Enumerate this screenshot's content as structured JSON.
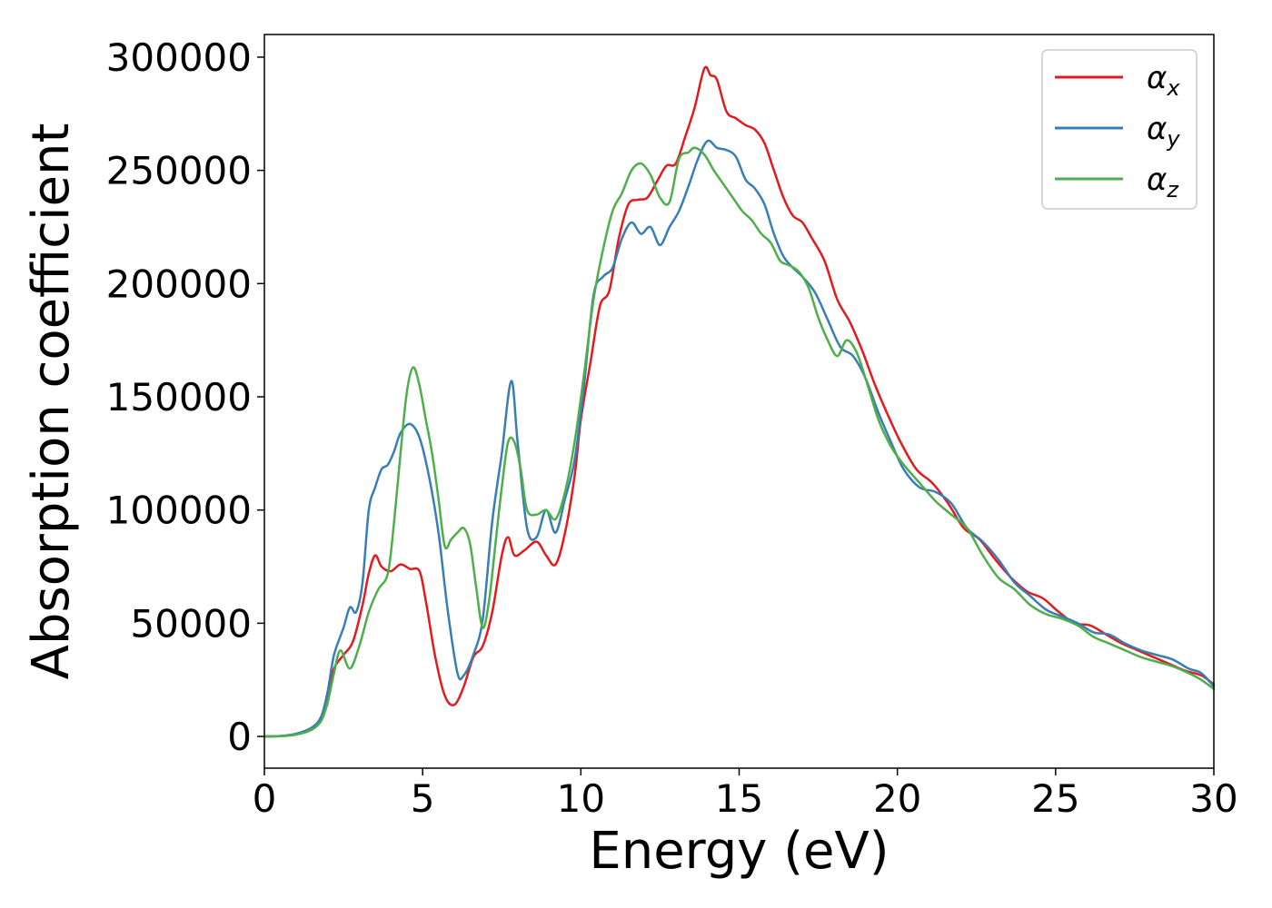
{
  "chart_data": {
    "type": "line",
    "title": "",
    "xlabel": "Energy (eV)",
    "ylabel": "Absorption coefficient",
    "xlim": [
      0,
      30
    ],
    "ylim": [
      -14000,
      310000
    ],
    "x_ticks": [
      "0",
      "5",
      "10",
      "15",
      "20",
      "25",
      "30"
    ],
    "y_ticks": [
      "0",
      "50000",
      "100000",
      "150000",
      "200000",
      "250000",
      "300000"
    ],
    "grid": false,
    "legend_position": "top-right",
    "series": [
      {
        "name": "α",
        "subscript": "x",
        "color": "#e41a1c",
        "x": [
          0,
          0.5,
          1,
          1.5,
          1.8,
          2,
          2.2,
          2.5,
          2.8,
          3.1,
          3.3,
          3.5,
          3.7,
          4,
          4.3,
          4.6,
          4.9,
          5.1,
          5.4,
          5.7,
          6,
          6.3,
          6.6,
          6.9,
          7.2,
          7.5,
          7.7,
          7.9,
          8.2,
          8.6,
          8.9,
          9.2,
          9.5,
          9.8,
          10,
          10.3,
          10.6,
          10.9,
          11.2,
          11.5,
          11.8,
          12.1,
          12.4,
          12.7,
          13,
          13.3,
          13.6,
          13.9,
          14.1,
          14.3,
          14.6,
          14.9,
          15.2,
          15.5,
          15.8,
          16.1,
          16.4,
          16.7,
          17,
          17.3,
          17.7,
          18.1,
          18.5,
          18.9,
          19.3,
          19.7,
          20.1,
          20.6,
          21.1,
          21.6,
          22.1,
          22.6,
          23.1,
          23.6,
          24.1,
          24.6,
          25.1,
          25.6,
          26.1,
          26.6,
          27.1,
          27.6,
          28.1,
          28.6,
          29.1,
          29.6,
          30
        ],
        "y": [
          0,
          200,
          1000,
          3500,
          8000,
          18000,
          30000,
          36000,
          42000,
          58000,
          72000,
          80000,
          75000,
          73000,
          76000,
          74000,
          73000,
          60000,
          35000,
          18000,
          14000,
          22000,
          35000,
          40000,
          55000,
          80000,
          88000,
          80000,
          82000,
          86000,
          80000,
          76000,
          90000,
          115000,
          140000,
          165000,
          190000,
          197000,
          220000,
          235000,
          237000,
          238000,
          245000,
          252000,
          253000,
          265000,
          278000,
          295000,
          292000,
          290000,
          276000,
          273000,
          270000,
          268000,
          262000,
          250000,
          238000,
          230000,
          227000,
          220000,
          210000,
          193000,
          183000,
          170000,
          155000,
          142000,
          130000,
          118000,
          112000,
          103000,
          92000,
          87000,
          78000,
          70000,
          64000,
          61000,
          55000,
          50000,
          49000,
          45000,
          41000,
          38000,
          35000,
          32000,
          29000,
          27000,
          23000
        ]
      },
      {
        "name": "α",
        "subscript": "y",
        "color": "#377eb8",
        "x": [
          0,
          0.5,
          1,
          1.5,
          1.8,
          2,
          2.2,
          2.5,
          2.7,
          2.9,
          3.1,
          3.3,
          3.5,
          3.7,
          3.9,
          4.1,
          4.3,
          4.6,
          4.9,
          5.2,
          5.5,
          5.8,
          6.1,
          6.3,
          6.6,
          6.9,
          7.2,
          7.5,
          7.8,
          8,
          8.3,
          8.6,
          8.9,
          9.2,
          9.5,
          9.8,
          10.1,
          10.4,
          10.7,
          11,
          11.3,
          11.6,
          11.9,
          12.2,
          12.5,
          12.8,
          13.1,
          13.4,
          13.7,
          14,
          14.3,
          14.6,
          14.9,
          15.2,
          15.5,
          15.8,
          16.1,
          16.4,
          16.7,
          17,
          17.4,
          17.8,
          18.2,
          18.6,
          19,
          19.4,
          19.8,
          20.2,
          20.7,
          21.2,
          21.7,
          22.2,
          22.7,
          23.2,
          23.7,
          24.2,
          24.7,
          25.2,
          25.7,
          26.2,
          26.7,
          27.2,
          27.7,
          28.2,
          28.7,
          29.2,
          29.6,
          30
        ],
        "y": [
          0,
          200,
          1200,
          4000,
          9000,
          20000,
          36000,
          48000,
          57000,
          55000,
          68000,
          100000,
          110000,
          118000,
          120000,
          126000,
          134000,
          138000,
          132000,
          115000,
          90000,
          55000,
          28000,
          27000,
          36000,
          52000,
          95000,
          125000,
          157000,
          130000,
          92000,
          88000,
          100000,
          90000,
          105000,
          122000,
          155000,
          195000,
          203000,
          207000,
          220000,
          227000,
          222000,
          225000,
          217000,
          225000,
          232000,
          243000,
          255000,
          263000,
          260000,
          259000,
          256000,
          246000,
          242000,
          235000,
          222000,
          212000,
          207000,
          203000,
          196000,
          184000,
          172000,
          168000,
          158000,
          143000,
          130000,
          118000,
          110000,
          108000,
          103000,
          92000,
          86000,
          78000,
          68000,
          62000,
          56000,
          53000,
          50000,
          46000,
          45000,
          41000,
          38000,
          36000,
          34000,
          30000,
          28000,
          22000
        ]
      },
      {
        "name": "α",
        "subscript": "z",
        "color": "#4daf4a",
        "x": [
          0,
          0.5,
          1,
          1.5,
          1.8,
          2,
          2.2,
          2.4,
          2.7,
          3,
          3.3,
          3.6,
          3.9,
          4.1,
          4.3,
          4.5,
          4.7,
          4.9,
          5.1,
          5.3,
          5.5,
          5.7,
          5.9,
          6.1,
          6.3,
          6.5,
          6.7,
          6.9,
          7.1,
          7.3,
          7.5,
          7.7,
          7.9,
          8.1,
          8.3,
          8.6,
          8.9,
          9.2,
          9.5,
          9.8,
          10.1,
          10.4,
          10.7,
          11,
          11.3,
          11.6,
          11.9,
          12.2,
          12.5,
          12.8,
          13.1,
          13.4,
          13.6,
          13.9,
          14.2,
          14.5,
          14.8,
          15.1,
          15.4,
          15.7,
          16,
          16.3,
          16.6,
          16.9,
          17.2,
          17.5,
          17.8,
          18.1,
          18.4,
          18.7,
          19,
          19.4,
          19.8,
          20.2,
          20.7,
          21.2,
          21.7,
          22.2,
          22.7,
          23.2,
          23.7,
          24.2,
          24.7,
          25.2,
          25.7,
          26.2,
          26.7,
          27.2,
          27.7,
          28.2,
          28.7,
          29.2,
          29.6,
          30
        ],
        "y": [
          0,
          150,
          800,
          3000,
          7000,
          15000,
          28000,
          38000,
          30000,
          40000,
          55000,
          65000,
          72000,
          95000,
          125000,
          152000,
          163000,
          155000,
          140000,
          125000,
          105000,
          84000,
          87000,
          90000,
          92000,
          85000,
          65000,
          48000,
          60000,
          85000,
          110000,
          130000,
          130000,
          118000,
          100000,
          98000,
          100000,
          96000,
          108000,
          130000,
          160000,
          193000,
          215000,
          232000,
          240000,
          250000,
          253000,
          248000,
          238000,
          236000,
          255000,
          258000,
          260000,
          257000,
          250000,
          244000,
          238000,
          232000,
          228000,
          222000,
          218000,
          210000,
          208000,
          205000,
          198000,
          185000,
          175000,
          168000,
          175000,
          170000,
          158000,
          140000,
          128000,
          120000,
          112000,
          104000,
          98000,
          92000,
          80000,
          70000,
          65000,
          58000,
          54000,
          52000,
          49000,
          44000,
          41000,
          38000,
          35000,
          33000,
          31000,
          28000,
          25000,
          21000
        ]
      }
    ]
  }
}
